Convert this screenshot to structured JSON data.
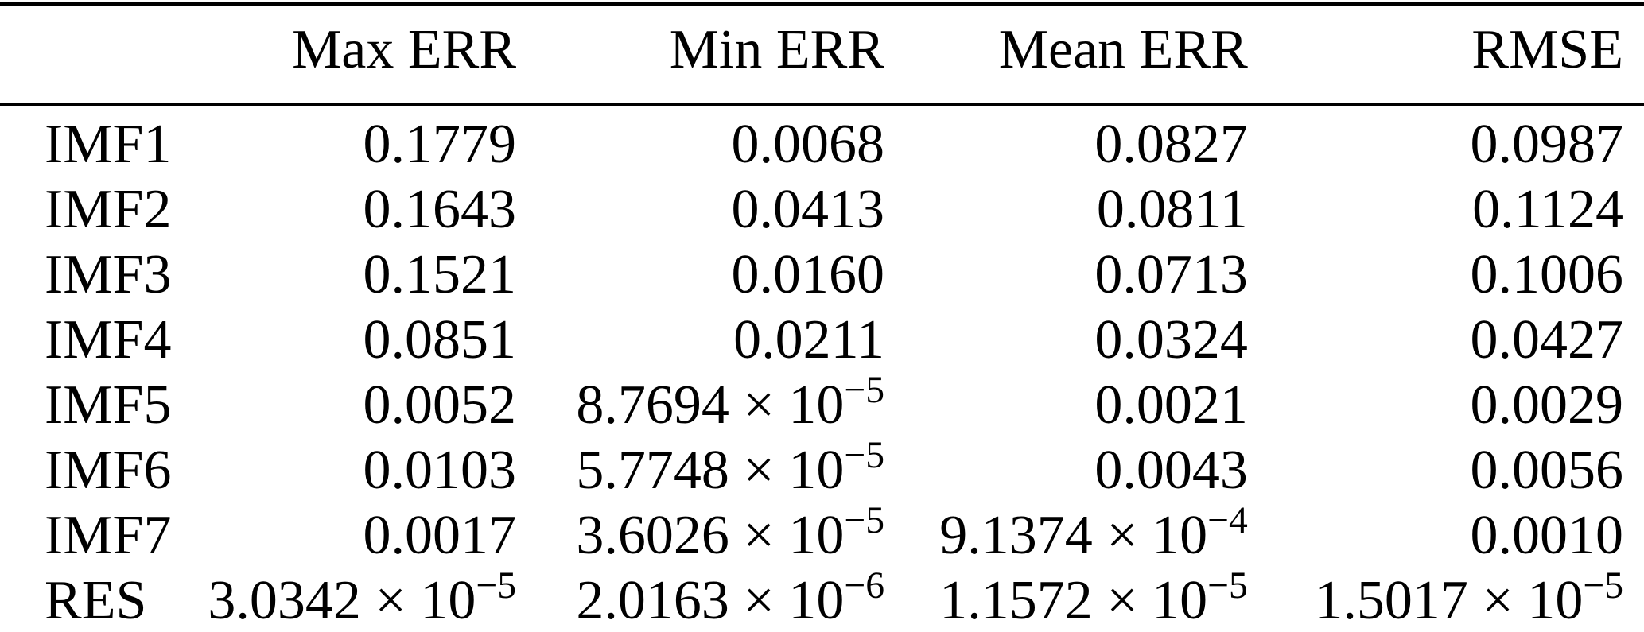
{
  "page": {
    "background_color": "#ffffff",
    "text_color": "#000000",
    "rule_color": "#000000"
  },
  "table": {
    "columns": [
      "",
      "Max ERR",
      "Min ERR",
      "Mean ERR",
      "RMSE"
    ],
    "rows": [
      {
        "label": "IMF1",
        "values": [
          "0.1779",
          "0.0068",
          "0.0827",
          "0.0987"
        ]
      },
      {
        "label": "IMF2",
        "values": [
          "0.1643",
          "0.0413",
          "0.0811",
          "0.1124"
        ]
      },
      {
        "label": "IMF3",
        "values": [
          "0.1521",
          "0.0160",
          "0.0713",
          "0.1006"
        ]
      },
      {
        "label": "IMF4",
        "values": [
          "0.0851",
          "0.0211",
          "0.0324",
          "0.0427"
        ]
      },
      {
        "label": "IMF5",
        "values": [
          "0.0052",
          "8.7694 × 10^−5",
          "0.0021",
          "0.0029"
        ]
      },
      {
        "label": "IMF6",
        "values": [
          "0.0103",
          "5.7748 × 10^−5",
          "0.0043",
          "0.0056"
        ]
      },
      {
        "label": "IMF7",
        "values": [
          "0.0017",
          "3.6026 × 10^−5",
          "9.1374 × 10^−4",
          "0.0010"
        ]
      },
      {
        "label": "RES",
        "values": [
          "3.0342 × 10^−5",
          "2.0163 × 10^−6",
          "1.1572 × 10^−5",
          "1.5017 × 10^−5"
        ]
      }
    ]
  }
}
